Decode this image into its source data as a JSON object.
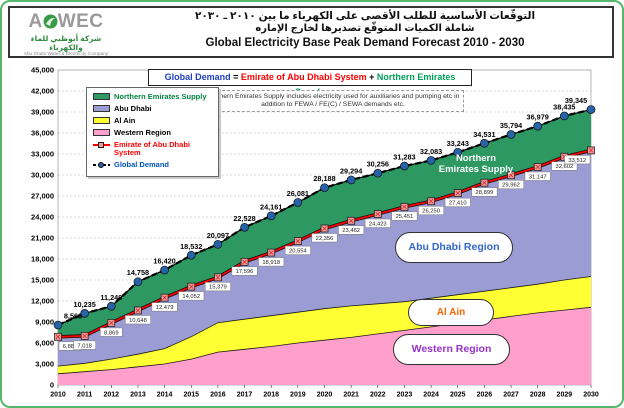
{
  "header": {
    "logo": {
      "brand_left": "A",
      "brand_right": "WEC",
      "arabic_name": "شركة أبوظبي للماء والكهرباء",
      "english_name": "Abu Dhabi Water & Electricity Company"
    },
    "title_arabic_line1": "التوقّعات الأساسية للطلب الأقصى على الكهرباء ما بين ٢٠١٠ ـ ٢٠٣٠",
    "title_arabic_line2": "شاملة الكميات المتوقّع تصديرها لخارج الإماره",
    "title_english": "Global Electricity Base Peak Demand Forecast 2010 - 2030"
  },
  "formula": {
    "parts": [
      {
        "text": "Global Demand",
        "color": "#1f3fbf"
      },
      {
        "text": " = ",
        "color": "#000000"
      },
      {
        "text": "Emirate of Abu Dhabi System",
        "color": "#ff0000"
      },
      {
        "text": " + ",
        "color": "#000000"
      },
      {
        "text": "Northern Emirates Supply",
        "color": "#00a05a"
      }
    ]
  },
  "note": "Northern Emirates Supply includes electricity used for auxiliaries and pumping etc in addition to FEWA / FE(C) / SEWA demands etc.",
  "legend": {
    "items": [
      {
        "label": "Northern Emirates Supply",
        "type": "area",
        "swatch": "#2e9862",
        "text_color": "#00843d"
      },
      {
        "label": "Abu Dhabi",
        "type": "area",
        "swatch": "#9c9cd4",
        "text_color": "#000000"
      },
      {
        "label": "Al Ain",
        "type": "area",
        "swatch": "#ffff33",
        "text_color": "#000000"
      },
      {
        "label": "Western Region",
        "type": "area",
        "swatch": "#ff9fcb",
        "text_color": "#000000"
      },
      {
        "label": "Emirate of Abu Dhabi System",
        "type": "line-square",
        "swatch": "#ff0000",
        "text_color": "#ff0000"
      },
      {
        "label": "Global Demand",
        "type": "line-circle",
        "swatch": "#000000",
        "text_color": "#0055be"
      }
    ]
  },
  "region_labels": {
    "northern_emirates": "Northern Emirates Supply",
    "abu_dhabi": "Abu Dhabi Region",
    "al_ain": "Al Ain",
    "western": "Western Region"
  },
  "chart_data": {
    "type": "area",
    "stacked": true,
    "title": "Global Electricity Base Peak Demand Forecast 2010 - 2030",
    "x": [
      2010,
      2011,
      2012,
      2013,
      2014,
      2015,
      2016,
      2017,
      2018,
      2019,
      2020,
      2021,
      2022,
      2023,
      2024,
      2025,
      2026,
      2027,
      2028,
      2029,
      2030
    ],
    "ylim": [
      0,
      45000
    ],
    "ytick_step": 3000,
    "grid": "horizontal-dotted",
    "legend_position": "top-left-inside",
    "series": [
      {
        "name": "Western Region",
        "color": "#ff9fcb",
        "estimated": true,
        "values": [
          1600,
          1900,
          2200,
          2600,
          3000,
          3700,
          4700,
          5100,
          5500,
          6000,
          6400,
          6800,
          7300,
          7800,
          8300,
          8800,
          9300,
          9800,
          10300,
          10700,
          11100
        ]
      },
      {
        "name": "Al Ain",
        "color": "#ffff33",
        "estimated": true,
        "values": [
          1100,
          1200,
          1500,
          1800,
          2200,
          3200,
          4200,
          4300,
          4400,
          4400,
          4500,
          4500,
          4300,
          4100,
          4100,
          4100,
          4100,
          4100,
          4100,
          4300,
          4400
        ]
      },
      {
        "name": "Abu Dhabi",
        "color": "#9c9cd4",
        "estimated": true,
        "values": [
          4185,
          3918,
          5169,
          6248,
          7279,
          7152,
          6479,
          8196,
          9018,
          10154,
          11456,
          12162,
          12823,
          13551,
          13850,
          14510,
          15499,
          16062,
          16747,
          17602,
          18012
        ]
      },
      {
        "name": "Northern Emirates Supply",
        "color": "#2e9862",
        "estimated": true,
        "values": [
          1678,
          3217,
          2377,
          4110,
          3941,
          4480,
          4718,
          4932,
          5243,
          5527,
          5832,
          5832,
          5833,
          5832,
          5833,
          5833,
          5632,
          5832,
          5832,
          5833,
          5833
        ]
      }
    ],
    "lines": [
      {
        "name": "Emirate of Abu Dhabi System",
        "color": "#ff0000",
        "marker": "square",
        "labels": true,
        "values": [
          6885,
          7018,
          8869,
          10648,
          12479,
          14052,
          15379,
          17596,
          18918,
          20554,
          22356,
          23462,
          24423,
          25451,
          26250,
          27410,
          28899,
          29962,
          31147,
          32602,
          33512
        ]
      },
      {
        "name": "Global Demand",
        "color": "#000000",
        "marker": "circle",
        "labels": true,
        "values": [
          8563,
          10235,
          11246,
          14758,
          16420,
          18532,
          20097,
          22528,
          24161,
          26081,
          28188,
          29294,
          30256,
          31283,
          32083,
          33243,
          34531,
          35794,
          36979,
          38435,
          39345
        ]
      }
    ]
  }
}
